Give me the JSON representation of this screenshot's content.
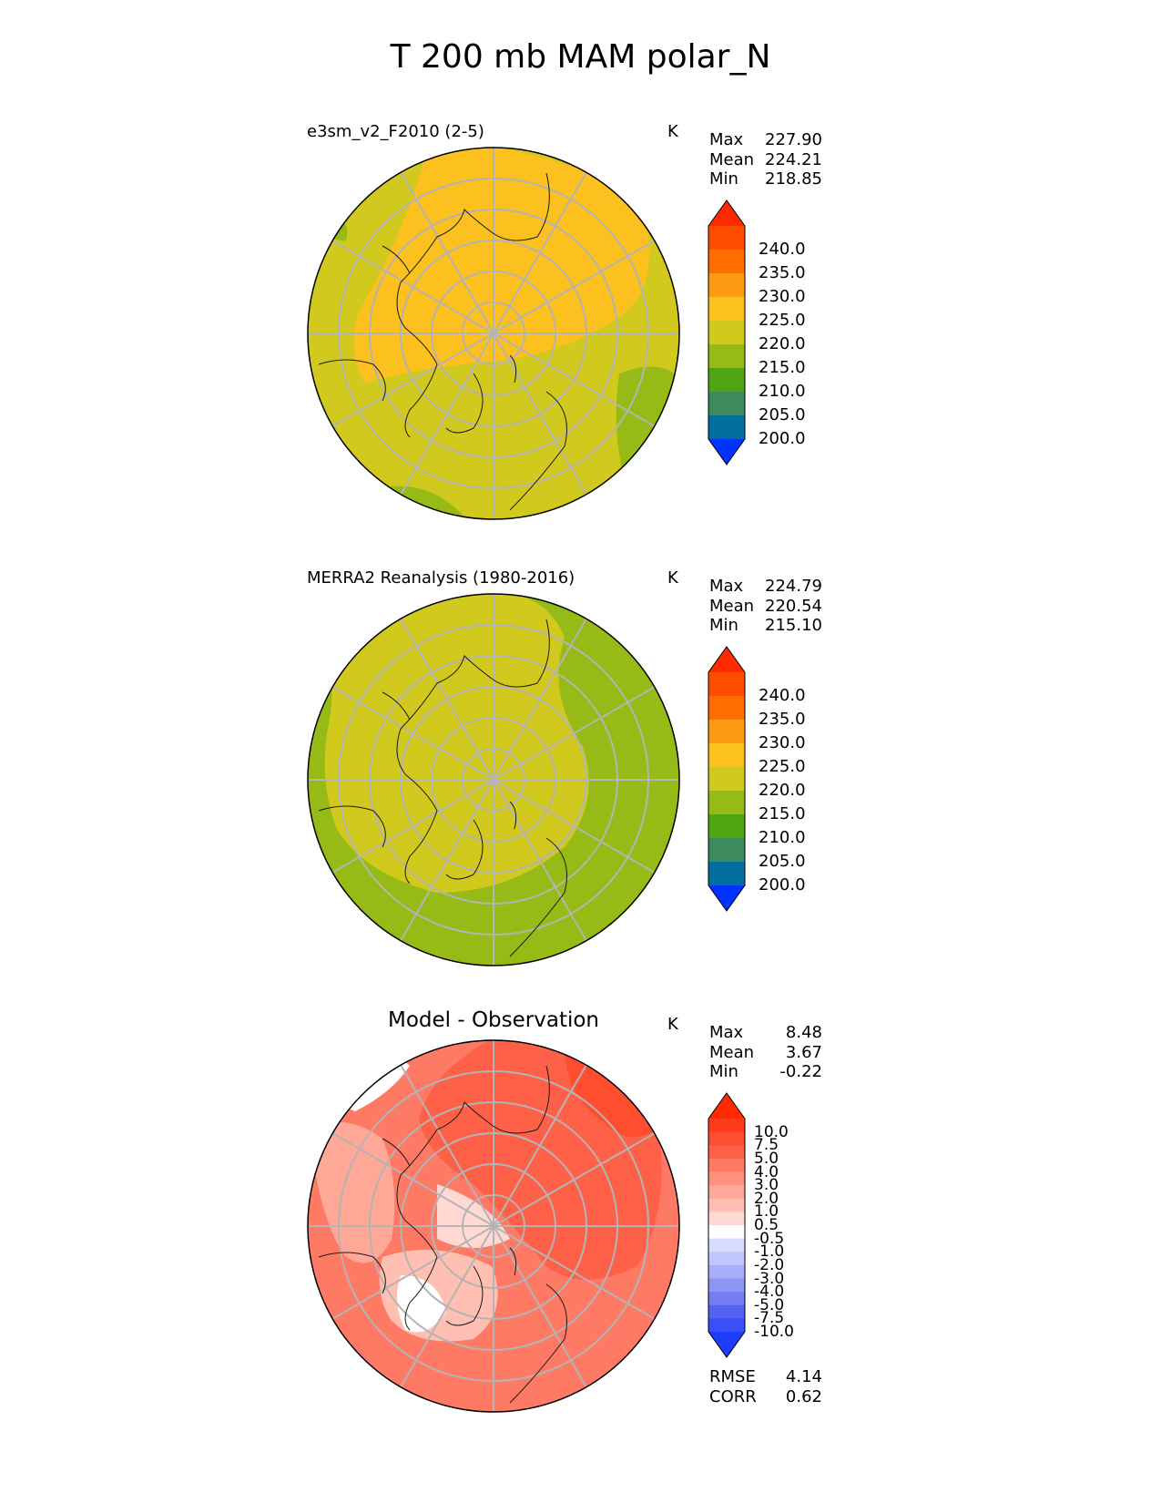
{
  "figure": {
    "title": "T 200 mb MAM polar_N"
  },
  "panels": [
    {
      "id": "test",
      "label": "e3sm_v2_F2010 (2-5)",
      "units": "K",
      "stats": [
        {
          "label": "Max",
          "value": "227.90"
        },
        {
          "label": "Mean",
          "value": "224.21"
        },
        {
          "label": "Min",
          "value": "218.85"
        }
      ],
      "colorbar": {
        "labels": [
          "240.0",
          "235.0",
          "230.0",
          "225.0",
          "220.0",
          "215.0",
          "210.0",
          "205.0",
          "200.0"
        ],
        "colors": [
          "#ff2a00",
          "#ff4d00",
          "#ff6d00",
          "#ff9a14",
          "#fcc11f",
          "#d2c91e",
          "#97bb16",
          "#4ea510",
          "#3d8a5d",
          "#006e9e",
          "#0033ff"
        ]
      }
    },
    {
      "id": "reference",
      "label": "MERRA2 Reanalysis (1980-2016)",
      "units": "K",
      "stats": [
        {
          "label": "Max",
          "value": "224.79"
        },
        {
          "label": "Mean",
          "value": "220.54"
        },
        {
          "label": "Min",
          "value": "215.10"
        }
      ],
      "colorbar": {
        "labels": [
          "240.0",
          "235.0",
          "230.0",
          "225.0",
          "220.0",
          "215.0",
          "210.0",
          "205.0",
          "200.0"
        ],
        "colors": [
          "#ff2a00",
          "#ff4d00",
          "#ff6d00",
          "#ff9a14",
          "#fcc11f",
          "#d2c91e",
          "#97bb16",
          "#4ea510",
          "#3d8a5d",
          "#006e9e",
          "#0033ff"
        ]
      }
    },
    {
      "id": "difference",
      "label": "Model - Observation",
      "units": "K",
      "stats": [
        {
          "label": "Max",
          "value": "8.48"
        },
        {
          "label": "Mean",
          "value": "3.67"
        },
        {
          "label": "Min",
          "value": "-0.22"
        }
      ],
      "colorbar": {
        "labels": [
          "10.0",
          "7.5",
          "5.0",
          "4.0",
          "3.0",
          "2.0",
          "1.0",
          "0.5",
          "-0.5",
          "-1.0",
          "-2.0",
          "-3.0",
          "-4.0",
          "-5.0",
          "-7.5",
          "-10.0"
        ],
        "colors": [
          "#ff2a00",
          "#ff3a18",
          "#ff4d30",
          "#ff6048",
          "#ff7a64",
          "#ff917e",
          "#ffa898",
          "#ffbfb2",
          "#ffd9d2",
          "#ffffff",
          "#d9dcff",
          "#c2c6ff",
          "#a9aefc",
          "#8f95f5",
          "#747ef2",
          "#5462f2",
          "#3850f5",
          "#1d3dfa"
        ]
      },
      "metrics": [
        {
          "label": "RMSE",
          "value": "4.14"
        },
        {
          "label": "CORR",
          "value": "0.62"
        }
      ]
    }
  ]
}
